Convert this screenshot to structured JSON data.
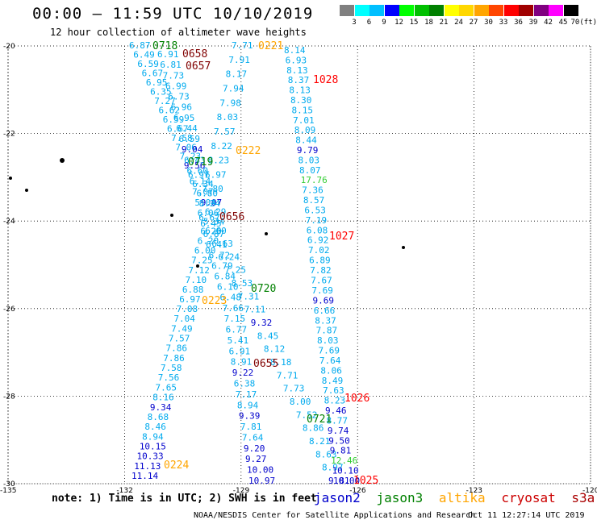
{
  "title": "00:00 — 11:59 UTC 10/10/2019",
  "subtitle": "12 hour collection of altimeter wave heights",
  "color_scale": {
    "unit": "(ft)",
    "labels": [
      "3",
      "6",
      "9",
      "12",
      "15",
      "18",
      "21",
      "24",
      "27",
      "30",
      "33",
      "36",
      "39",
      "42",
      "45",
      "70"
    ],
    "colors": [
      "#808080",
      "#00ffff",
      "#00bfff",
      "#0000ff",
      "#00ff00",
      "#00c000",
      "#008000",
      "#ffff00",
      "#ffd700",
      "#ffa500",
      "#ff4500",
      "#ff0000",
      "#a00000",
      "#800080",
      "#ff00ff",
      "#000000"
    ]
  },
  "axes": {
    "lat_labels": [
      "-20",
      "-22",
      "-24",
      "-26",
      "-28",
      "-30"
    ],
    "lon_labels": [
      "-135",
      "-132",
      "-129",
      "-126",
      "-123",
      "-120"
    ]
  },
  "tracks": [
    {
      "name": "track-a",
      "color": "#00aaee",
      "dark_color": "#0000cc",
      "values": [
        "6.87",
        "6.49",
        "6.59",
        "6.67",
        "6.95",
        "6.35",
        "7.27",
        "6.62",
        "6.59",
        "6.67",
        "7.58",
        "7.06",
        "7.23",
        "9.56",
        "6.97",
        "6.34",
        "6.80",
        "9.07",
        "6.29",
        "5.34",
        "6.20",
        "6.20",
        "6.00",
        "7.25",
        "7.12",
        "7.10",
        "6.88",
        "6.97",
        "7.08",
        "7.04",
        "7.49",
        "7.57",
        "7.86",
        "7.86",
        "7.58",
        "7.56",
        "7.65",
        "8.16",
        "9.34",
        "8.68",
        "8.46",
        "8.94",
        "10.15",
        "10.33",
        "11.13",
        "11.14"
      ]
    },
    {
      "name": "track-b",
      "color": "#00aaee",
      "dark_color": "#0000cc",
      "values": [
        "6.91",
        "6.81",
        "7.73",
        "6.99",
        "6.73",
        "6.96",
        "6.95",
        "6.44",
        "6.59",
        "9.04",
        "6.43",
        "6.60",
        "6.14",
        "7.07",
        "5.04",
        "6.06",
        "6.45",
        "6.87",
        "6.41",
        "6.72",
        "6.79",
        "6.84",
        "6.10",
        "6.48",
        "7.66",
        "7.15",
        "6.77",
        "5.41",
        "6.91",
        "8.91",
        "9.22",
        "6.38",
        "7.17",
        "8.94",
        "9.39",
        "7.81",
        "7.64",
        "9.20",
        "9.27",
        "10.00",
        "10.97"
      ]
    },
    {
      "name": "track-c",
      "color": "#00aaee",
      "dark_color": "#0000cc",
      "values": [
        "7.71",
        "7.91",
        "8.17",
        "7.94",
        "7.98",
        "8.03",
        "7.57",
        "8.22",
        "8.23",
        "6.97",
        "7.80",
        "8.24",
        "6.67",
        "6.60",
        "6.63",
        "6.24",
        "7.25",
        "8.53",
        "7.31",
        "7.11",
        "9.32",
        "8.45",
        "8.12",
        "8.18",
        "7.71",
        "7.73",
        "8.00",
        "7.52",
        "8.86",
        "8.21",
        "8.63",
        "8.97",
        "9.81"
      ]
    },
    {
      "name": "track-d",
      "color": "#00aaee",
      "dark_color": "#0000cc",
      "values": [
        "8.14",
        "6.93",
        "8.13",
        "8.37",
        "8.13",
        "8.30",
        "8.15",
        "7.01",
        "8.09",
        "8.44",
        "9.79",
        "8.03",
        "8.07",
        "17.76",
        "7.36",
        "8.57",
        "6.53",
        "7.19",
        "6.08",
        "6.92",
        "7.02",
        "6.89",
        "7.82",
        "7.67",
        "7.69",
        "9.69",
        "6.66",
        "8.37",
        "7.87",
        "8.03",
        "7.69",
        "7.64",
        "8.06",
        "8.49",
        "7.63",
        "8.23",
        "9.46",
        "8.77",
        "9.74",
        "9.50",
        "9.81",
        "12.46",
        "10.10",
        "10.00"
      ]
    }
  ],
  "time_labels": [
    {
      "text": "0718",
      "sat": "jason3"
    },
    {
      "text": "0658",
      "sat": "cryosat"
    },
    {
      "text": "0657",
      "sat": "cryosat"
    },
    {
      "text": "0221",
      "sat": "altika"
    },
    {
      "text": "1028",
      "sat": "s3a"
    },
    {
      "text": "0222",
      "sat": "altika"
    },
    {
      "text": "0719",
      "sat": "jason3"
    },
    {
      "text": "0656",
      "sat": "cryosat"
    },
    {
      "text": "1027",
      "sat": "s3a"
    },
    {
      "text": "0720",
      "sat": "jason3"
    },
    {
      "text": "0223",
      "sat": "altika"
    },
    {
      "text": "0655",
      "sat": "cryosat"
    },
    {
      "text": "1026",
      "sat": "s3a"
    },
    {
      "text": "0721",
      "sat": "jason3"
    },
    {
      "text": "0224",
      "sat": "altika"
    },
    {
      "text": "1025",
      "sat": "s3a"
    }
  ],
  "satellite_colors": {
    "jason2": "#0000cc",
    "jason3": "#008000",
    "altika": "#ffa500",
    "cryosat": "#800000",
    "s3a": "#ff0000"
  },
  "legend": {
    "note": "note: 1) Time is in UTC; 2) SWH is in feet",
    "satellites": [
      {
        "label": "jason2",
        "color": "#0000cc"
      },
      {
        "label": "jason3",
        "color": "#008000"
      },
      {
        "label": "altika",
        "color": "#ffa500"
      },
      {
        "label": "cryosat",
        "color": "#cc0000"
      },
      {
        "label": "s3a",
        "color": "#aa0000"
      }
    ]
  },
  "footer": {
    "credit": "NOAA/NESDIS Center for Satellite Applications and Research",
    "timestamp": "Oct 11 12:27:14 UTC 2019"
  }
}
